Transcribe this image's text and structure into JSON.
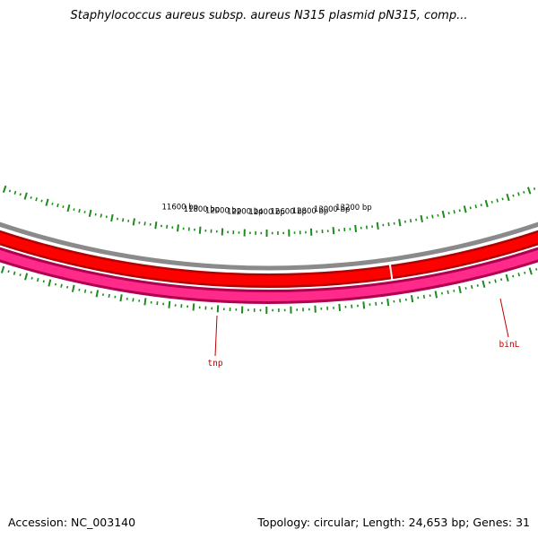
{
  "title": "Staphylococcus aureus subsp. aureus N315 plasmid pN315, comp...",
  "footer": {
    "accession": "Accession: NC_003140",
    "topology": "Topology: circular; Length: 24,653 bp; Genes: 31"
  },
  "map": {
    "colors": {
      "backbone": "#8a8a8a",
      "forward_feature": "#ff0000",
      "forward_feature_dark": "#b30000",
      "reverse_feature": "#ff2a8a",
      "reverse_feature_dark": "#b0004f",
      "ticks": "#1e8a1e",
      "gene_label": "#c00000"
    },
    "ruler_labels": [
      {
        "bp": 11600,
        "text": "11600 bp"
      },
      {
        "bp": 11800,
        "text": "11800 bp"
      },
      {
        "bp": 12000,
        "text": "12000 bp"
      },
      {
        "bp": 12200,
        "text": "12200 bp"
      },
      {
        "bp": 12400,
        "text": "12400 bp"
      },
      {
        "bp": 12600,
        "text": "12600 bp"
      },
      {
        "bp": 12800,
        "text": "12800 bp"
      },
      {
        "bp": 13000,
        "text": "13000 bp"
      },
      {
        "bp": 13200,
        "text": "13200 bp"
      }
    ],
    "genes": [
      {
        "name": "tnp",
        "strand": "reverse"
      },
      {
        "name": "binL",
        "strand": "reverse"
      }
    ]
  }
}
